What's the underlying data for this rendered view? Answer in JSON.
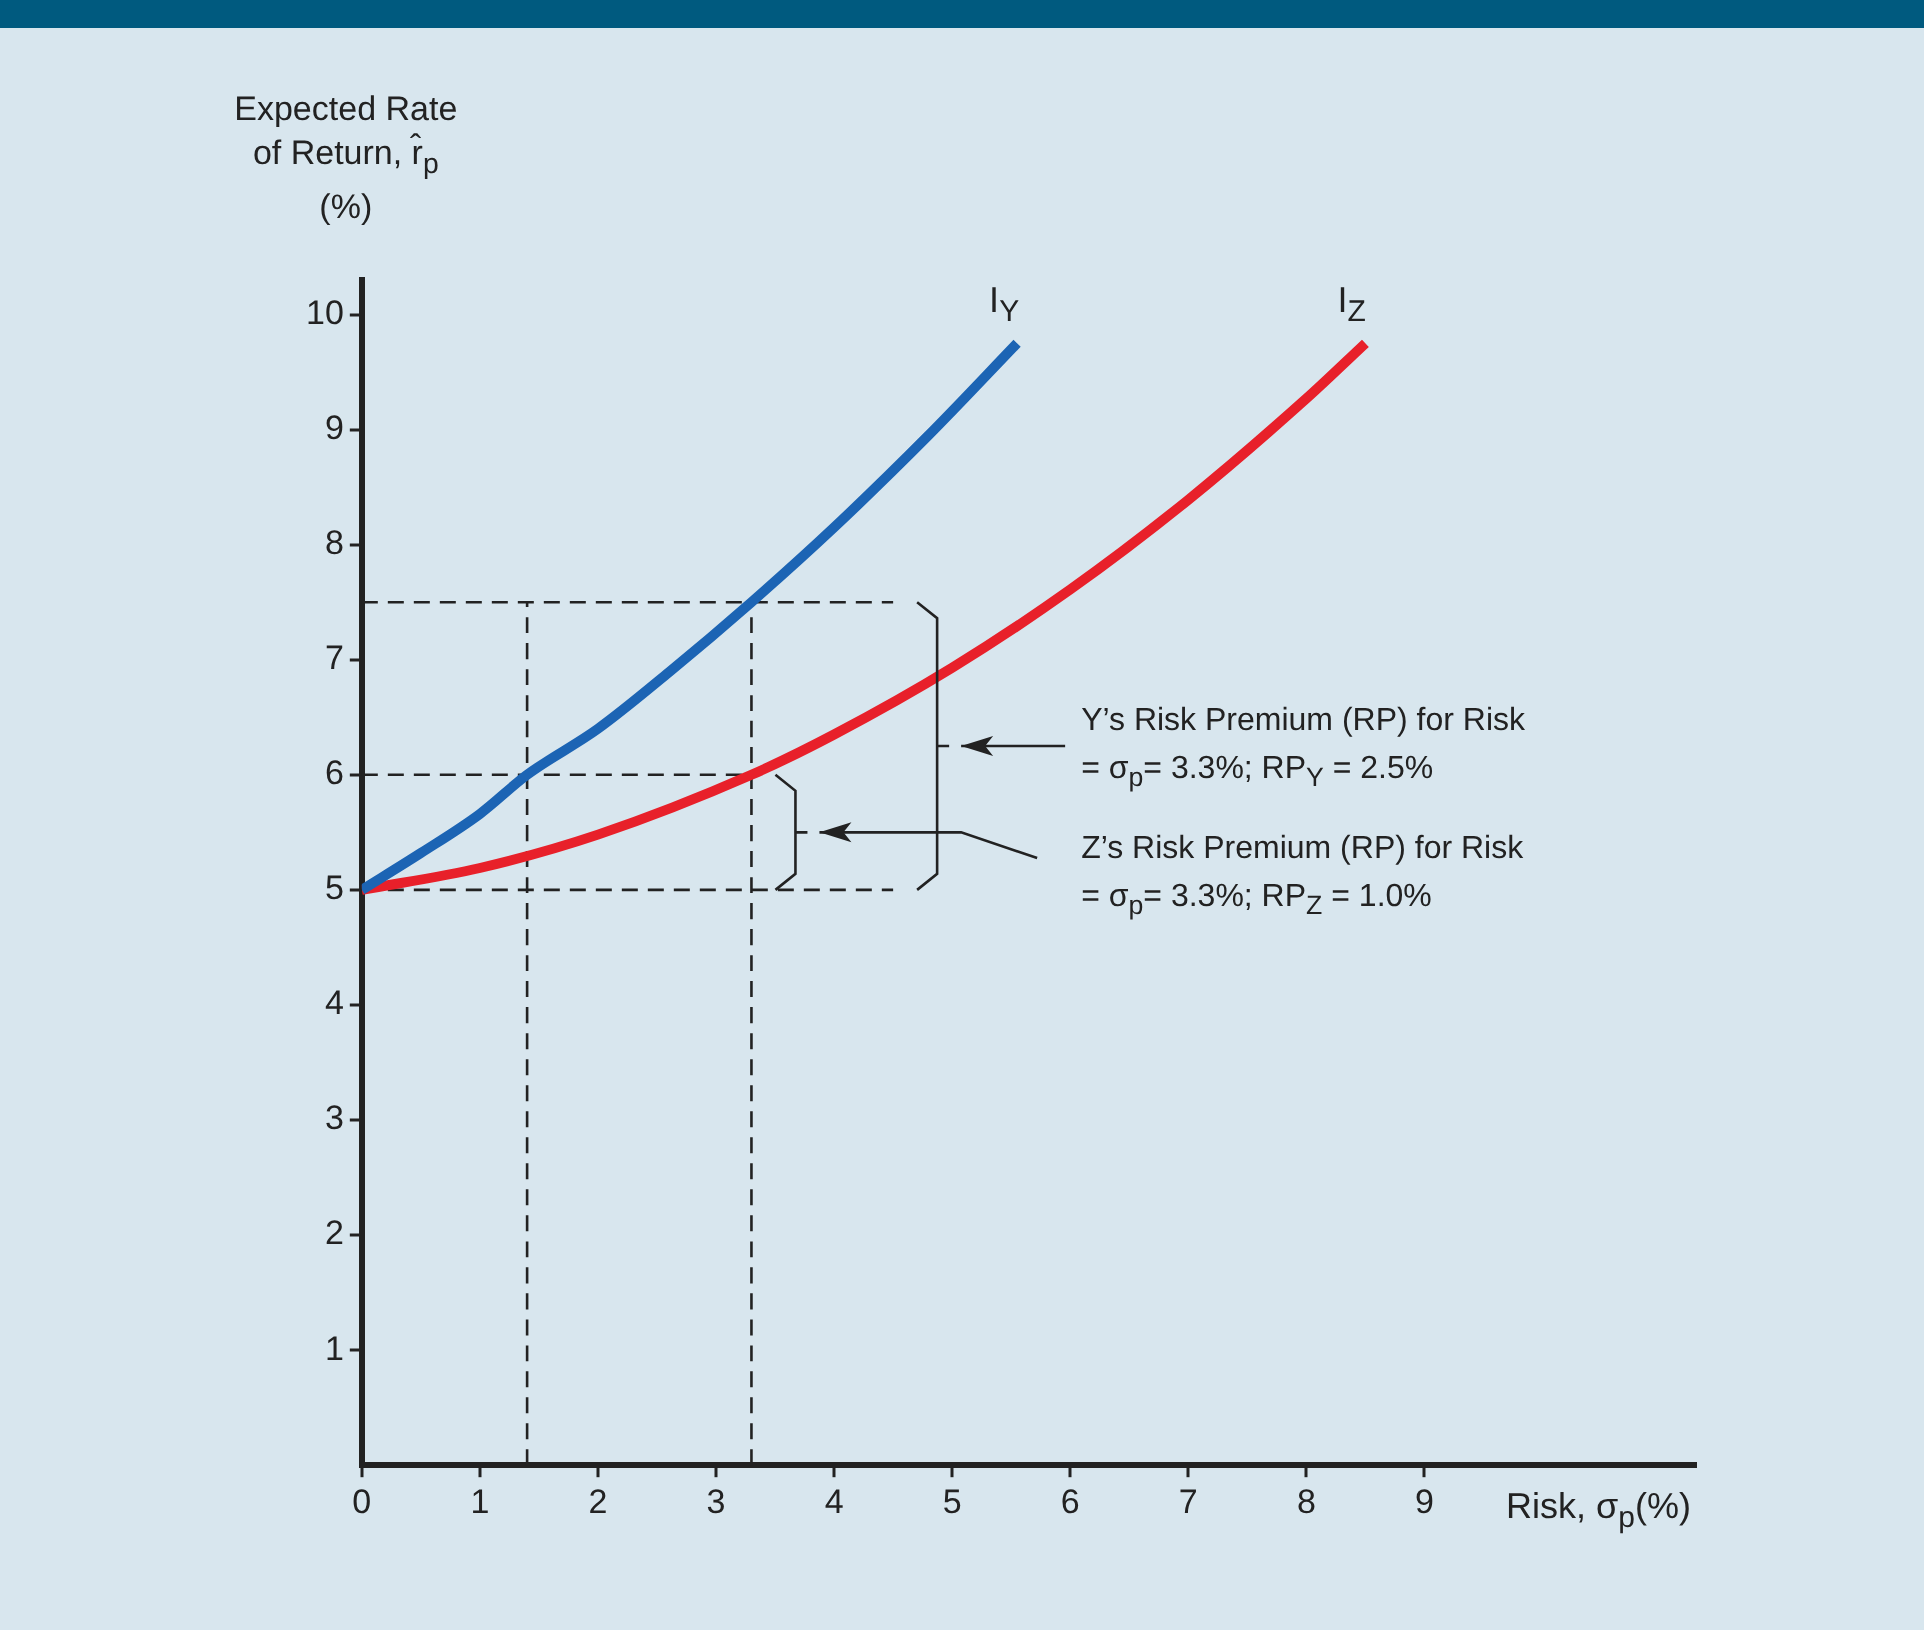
{
  "chart_data": {
    "type": "line",
    "ylabel": "Expected Rate of Return, r̂$_{p}$ (%)",
    "xlabel": "Risk, σ$_{p}$(%)",
    "xlim": [
      0,
      11.3
    ],
    "xticks": [
      0,
      1,
      2,
      3,
      4,
      5,
      6,
      7,
      8,
      9
    ],
    "ylim": [
      0,
      10.3
    ],
    "yticks": [
      1,
      2,
      3,
      4,
      5,
      6,
      7,
      8,
      9,
      10
    ],
    "legend": false,
    "marker": "none",
    "series": [
      {
        "name": "I$_{Y}$",
        "color": "#1c64b4",
        "x": [
          0,
          0.5,
          1,
          1.4,
          2,
          2.6,
          3.3,
          4,
          4.8,
          5.55
        ],
        "values": [
          5,
          5.32,
          5.66,
          6,
          6.4,
          6.89,
          7.5,
          8.15,
          8.95,
          9.75
        ]
      },
      {
        "name": "I$_{Z}$",
        "color": "#e8202a",
        "x": [
          0,
          1,
          2,
          3.3,
          4,
          5,
          6,
          7,
          8,
          8.5
        ],
        "values": [
          5,
          5.19,
          5.48,
          6,
          6.35,
          6.93,
          7.61,
          8.39,
          9.27,
          9.75
        ]
      },
      {
        "color": "#222222",
        "line_style": "dashed",
        "x": [
          1.4,
          1.4
        ],
        "values": [
          0,
          7.5
        ]
      },
      {
        "color": "#222222",
        "line_style": "dashed",
        "x": [
          3.3,
          3.3
        ],
        "values": [
          0,
          7.5
        ]
      },
      {
        "color": "#222222",
        "line_style": "dashed",
        "x": [
          0,
          4.5
        ],
        "values": [
          7.5,
          7.5
        ]
      },
      {
        "color": "#222222",
        "line_style": "dashed",
        "x": [
          0,
          3.3
        ],
        "values": [
          6,
          6
        ]
      },
      {
        "color": "#222222",
        "line_style": "dashed",
        "x": [
          0,
          4.5
        ],
        "values": [
          5,
          5
        ]
      }
    ],
    "annotations": [
      "Y’s Risk Premium (RP) for Risk = σ$_{p}$= 3.3%; RP$_{Y}$ = 2.5%",
      "Z’s Risk Premium (RP) for Risk = σ$_{p}$= 3.3%; RP$_{Z}$ = 1.0%"
    ]
  }
}
